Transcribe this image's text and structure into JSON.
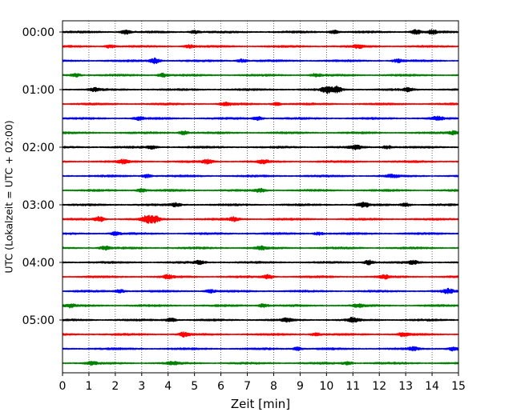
{
  "chart_data": {
    "type": "line",
    "xlabel": "Zeit  [min]",
    "ylabel": "UTC (Lokalzeit = UTC + 02:00)",
    "xlim": [
      0,
      15
    ],
    "x_ticks": [
      0,
      1,
      2,
      3,
      4,
      5,
      6,
      7,
      8,
      9,
      10,
      11,
      12,
      13,
      14,
      15
    ],
    "y_tick_labels": [
      "00:00",
      "01:00",
      "02:00",
      "03:00",
      "04:00",
      "05:00"
    ],
    "trace_interval_minutes": 15,
    "trace_count": 24,
    "grid": "vertical dotted",
    "color_cycle": [
      "#000000",
      "#ff0000",
      "#0000ff",
      "#008000"
    ],
    "traces": [
      {
        "start": "00:00",
        "color": "#000000",
        "bursts": [
          [
            2.4,
            1.8
          ],
          [
            5.0,
            1.3
          ],
          [
            10.3,
            1.4
          ],
          [
            13.4,
            1.8
          ],
          [
            14.0,
            1.6
          ]
        ]
      },
      {
        "start": "00:15",
        "color": "#ff0000",
        "bursts": [
          [
            1.8,
            1.4
          ],
          [
            4.8,
            1.2
          ],
          [
            11.2,
            1.3
          ]
        ]
      },
      {
        "start": "00:30",
        "color": "#0000ff",
        "bursts": [
          [
            3.5,
            2.2
          ],
          [
            6.8,
            1.3
          ],
          [
            12.7,
            1.3
          ]
        ]
      },
      {
        "start": "00:45",
        "color": "#008000",
        "bursts": [
          [
            0.5,
            1.3
          ],
          [
            3.8,
            1.5
          ],
          [
            9.6,
            1.2
          ]
        ]
      },
      {
        "start": "01:00",
        "color": "#000000",
        "bursts": [
          [
            1.2,
            1.3
          ],
          [
            10.0,
            3.0
          ],
          [
            10.4,
            2.6
          ],
          [
            13.1,
            1.3
          ]
        ]
      },
      {
        "start": "01:15",
        "color": "#ff0000",
        "bursts": [
          [
            6.2,
            1.5
          ],
          [
            8.1,
            1.2
          ]
        ]
      },
      {
        "start": "01:30",
        "color": "#0000ff",
        "bursts": [
          [
            2.9,
            1.3
          ],
          [
            7.4,
            1.5
          ],
          [
            14.2,
            1.4
          ]
        ]
      },
      {
        "start": "01:45",
        "color": "#008000",
        "bursts": [
          [
            4.6,
            1.7
          ],
          [
            14.8,
            1.4
          ]
        ]
      },
      {
        "start": "02:00",
        "color": "#000000",
        "bursts": [
          [
            3.4,
            1.3
          ],
          [
            11.1,
            1.6
          ],
          [
            12.3,
            1.3
          ]
        ]
      },
      {
        "start": "02:15",
        "color": "#ff0000",
        "bursts": [
          [
            2.3,
            1.3
          ],
          [
            5.5,
            1.6
          ],
          [
            7.6,
            1.4
          ]
        ]
      },
      {
        "start": "02:30",
        "color": "#0000ff",
        "bursts": [
          [
            3.2,
            1.5
          ],
          [
            12.5,
            1.2
          ]
        ]
      },
      {
        "start": "02:45",
        "color": "#008000",
        "bursts": [
          [
            3.0,
            1.4
          ],
          [
            7.5,
            1.3
          ]
        ]
      },
      {
        "start": "03:00",
        "color": "#000000",
        "bursts": [
          [
            4.3,
            1.4
          ],
          [
            11.4,
            2.2
          ],
          [
            13.0,
            1.4
          ]
        ]
      },
      {
        "start": "03:15",
        "color": "#ff0000",
        "bursts": [
          [
            1.4,
            2.2
          ],
          [
            3.2,
            3.0
          ],
          [
            3.5,
            2.6
          ],
          [
            6.5,
            1.5
          ]
        ]
      },
      {
        "start": "03:30",
        "color": "#0000ff",
        "bursts": [
          [
            2.0,
            1.3
          ],
          [
            9.7,
            1.2
          ]
        ]
      },
      {
        "start": "03:45",
        "color": "#008000",
        "bursts": [
          [
            1.6,
            1.4
          ],
          [
            7.5,
            1.3
          ]
        ]
      },
      {
        "start": "04:00",
        "color": "#000000",
        "bursts": [
          [
            5.2,
            1.5
          ],
          [
            11.6,
            1.9
          ],
          [
            13.3,
            1.3
          ]
        ]
      },
      {
        "start": "04:15",
        "color": "#ff0000",
        "bursts": [
          [
            4.0,
            1.4
          ],
          [
            7.8,
            1.6
          ],
          [
            12.2,
            1.3
          ]
        ]
      },
      {
        "start": "04:30",
        "color": "#0000ff",
        "bursts": [
          [
            2.2,
            1.4
          ],
          [
            5.6,
            1.3
          ],
          [
            14.6,
            1.7
          ]
        ]
      },
      {
        "start": "04:45",
        "color": "#008000",
        "bursts": [
          [
            0.3,
            1.3
          ],
          [
            7.6,
            1.4
          ],
          [
            11.2,
            1.3
          ]
        ]
      },
      {
        "start": "05:00",
        "color": "#000000",
        "bursts": [
          [
            4.1,
            1.5
          ],
          [
            8.5,
            1.4
          ],
          [
            11.0,
            1.8
          ]
        ]
      },
      {
        "start": "05:15",
        "color": "#ff0000",
        "bursts": [
          [
            4.6,
            1.9
          ],
          [
            9.6,
            1.3
          ],
          [
            12.9,
            1.3
          ]
        ]
      },
      {
        "start": "05:30",
        "color": "#0000ff",
        "bursts": [
          [
            8.9,
            1.3
          ],
          [
            13.3,
            1.4
          ],
          [
            14.8,
            1.6
          ]
        ]
      },
      {
        "start": "05:45",
        "color": "#008000",
        "bursts": [
          [
            1.1,
            1.4
          ],
          [
            4.2,
            1.3
          ],
          [
            10.8,
            1.4
          ]
        ]
      }
    ]
  }
}
